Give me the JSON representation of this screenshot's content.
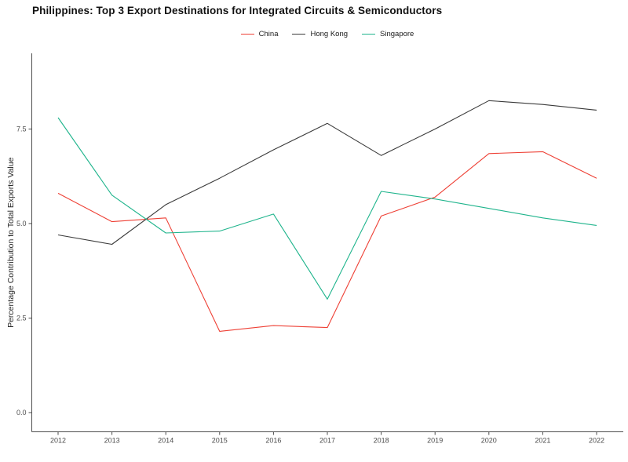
{
  "title": "Philippines: Top 3 Export Destinations for Integrated Circuits & Semiconductors",
  "colors": {
    "china": "#ee4035",
    "hong_kong": "#3a3a3a",
    "singapore": "#1fb48c",
    "axis": "#4d4d4d",
    "tick_label": "#4d4d4d",
    "text": "#262626"
  },
  "chart_data": {
    "type": "line",
    "x": [
      2012,
      2013,
      2014,
      2015,
      2016,
      2017,
      2018,
      2019,
      2020,
      2021,
      2022
    ],
    "x_tick_labels": [
      "2012",
      "2013",
      "2014",
      "2015",
      "2016",
      "2017",
      "2018",
      "2019",
      "2020",
      "2021",
      "2022"
    ],
    "series": [
      {
        "name": "China",
        "color": "#ee4035",
        "values": [
          5.8,
          5.05,
          5.15,
          2.15,
          2.3,
          2.25,
          5.2,
          5.7,
          6.85,
          6.9,
          6.2
        ]
      },
      {
        "name": "Hong Kong",
        "color": "#3a3a3a",
        "values": [
          4.7,
          4.45,
          5.5,
          6.2,
          6.95,
          7.65,
          6.8,
          7.5,
          8.25,
          8.15,
          8.0
        ]
      },
      {
        "name": "Singapore",
        "color": "#1fb48c",
        "values": [
          7.8,
          5.75,
          4.75,
          4.8,
          5.25,
          3.0,
          5.85,
          5.65,
          5.4,
          5.15,
          4.95
        ]
      }
    ],
    "title": "Philippines: Top 3 Export Destinations for Integrated Circuits & Semiconductors",
    "xlabel": "",
    "ylabel": "Percentage Contribution to Total Exports Value",
    "yticks": [
      0.0,
      2.5,
      5.0,
      7.5
    ],
    "ytick_labels": [
      "0.0",
      "2.5",
      "5.0",
      "7.5"
    ],
    "ylim": [
      0,
      9.5
    ],
    "xlim": [
      2012,
      2022
    ],
    "grid": false,
    "legend_position": "top-center"
  }
}
